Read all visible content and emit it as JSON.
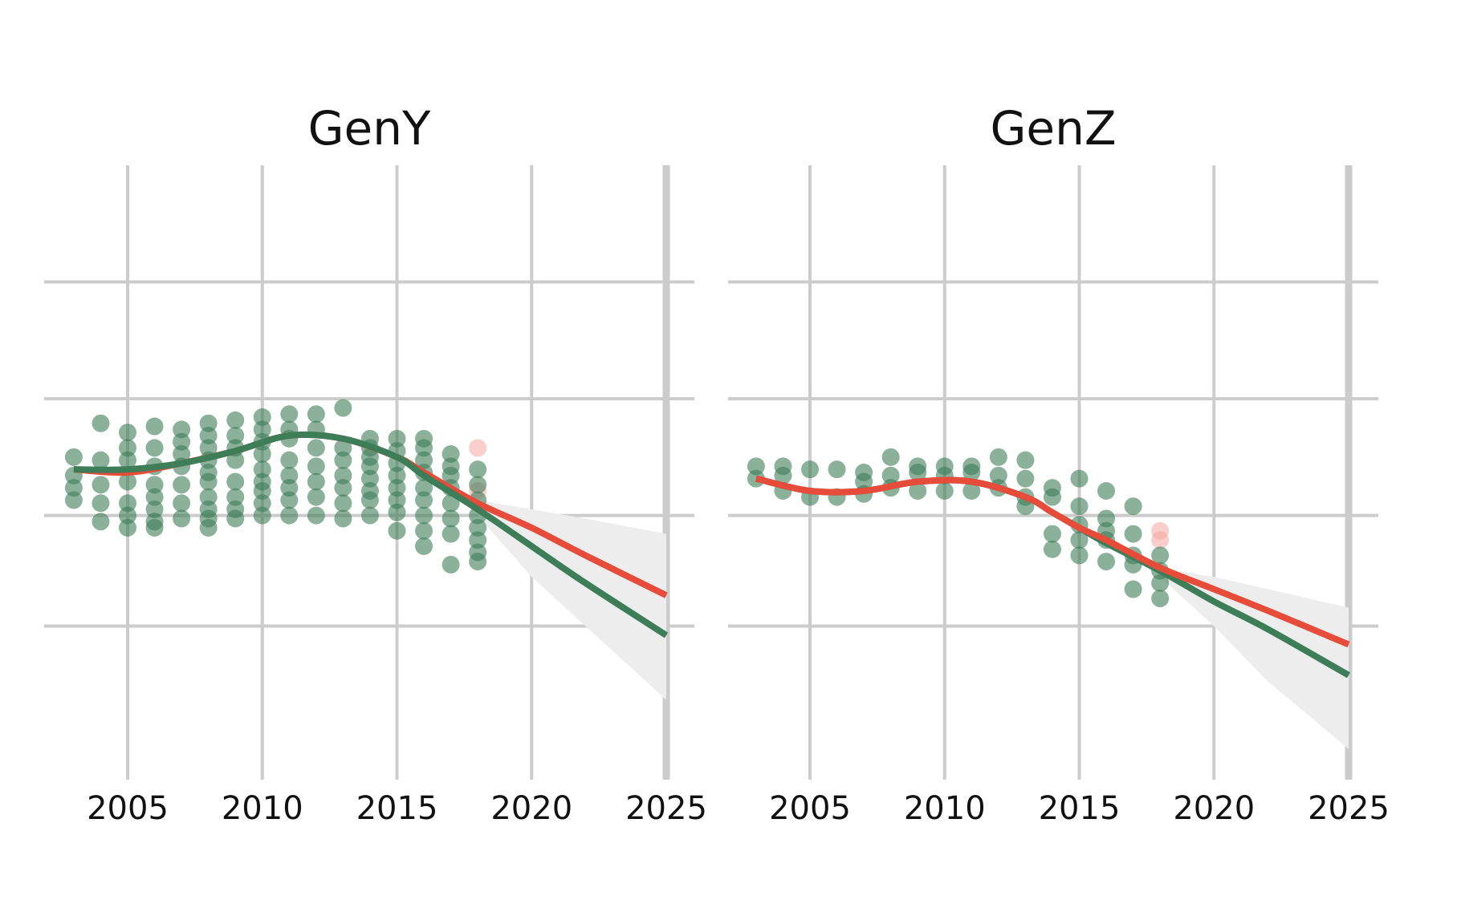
{
  "chart_data": {
    "type": "scatter",
    "x_ticks": [
      2005,
      2010,
      2015,
      2020,
      2025
    ],
    "x_tick_labels": [
      "2005",
      "2010",
      "2015",
      "2020",
      "2025"
    ],
    "xlim": [
      2002,
      2026
    ],
    "ylim": [
      0,
      100
    ],
    "y_gridlines": [
      25,
      43,
      62,
      81
    ],
    "grid": true,
    "legend": "none",
    "colors": {
      "points": "#3d7d58",
      "points_highlight": "#f4a6a0",
      "trend_red": "#e64c39",
      "trend_green": "#3d7d58",
      "ribbon": "#ededed",
      "grid": "#cccccc",
      "background": "#ffffff"
    },
    "panels": [
      {
        "title": "GenY",
        "points": [
          [
            2003,
            52.5
          ],
          [
            2003,
            49.5
          ],
          [
            2003,
            47.5
          ],
          [
            2003,
            45.5
          ],
          [
            2004,
            58
          ],
          [
            2004,
            52
          ],
          [
            2004,
            48
          ],
          [
            2004,
            45
          ],
          [
            2004,
            42
          ],
          [
            2005,
            56.5
          ],
          [
            2005,
            54
          ],
          [
            2005,
            52
          ],
          [
            2005,
            48.5
          ],
          [
            2005,
            45
          ],
          [
            2005,
            43
          ],
          [
            2005,
            41
          ],
          [
            2006,
            57.5
          ],
          [
            2006,
            54
          ],
          [
            2006,
            51
          ],
          [
            2006,
            48
          ],
          [
            2006,
            46
          ],
          [
            2006,
            44
          ],
          [
            2006,
            42
          ],
          [
            2006,
            41
          ],
          [
            2007,
            57
          ],
          [
            2007,
            55
          ],
          [
            2007,
            53
          ],
          [
            2007,
            51
          ],
          [
            2007,
            48
          ],
          [
            2007,
            45
          ],
          [
            2007,
            42.5
          ],
          [
            2008,
            58
          ],
          [
            2008,
            56
          ],
          [
            2008,
            54
          ],
          [
            2008,
            52
          ],
          [
            2008,
            50
          ],
          [
            2008,
            48.5
          ],
          [
            2008,
            46
          ],
          [
            2008,
            44
          ],
          [
            2008,
            42.5
          ],
          [
            2008,
            41
          ],
          [
            2009,
            58.5
          ],
          [
            2009,
            56
          ],
          [
            2009,
            54
          ],
          [
            2009,
            52
          ],
          [
            2009,
            48.5
          ],
          [
            2009,
            46
          ],
          [
            2009,
            44
          ],
          [
            2009,
            42.5
          ],
          [
            2010,
            59
          ],
          [
            2010,
            57
          ],
          [
            2010,
            55
          ],
          [
            2010,
            53
          ],
          [
            2010,
            50.5
          ],
          [
            2010,
            48.5
          ],
          [
            2010,
            47
          ],
          [
            2010,
            45
          ],
          [
            2010,
            43
          ],
          [
            2011,
            59.5
          ],
          [
            2011,
            57
          ],
          [
            2011,
            55.5
          ],
          [
            2011,
            52
          ],
          [
            2011,
            49.5
          ],
          [
            2011,
            47.5
          ],
          [
            2011,
            45.5
          ],
          [
            2011,
            43
          ],
          [
            2012,
            59.5
          ],
          [
            2012,
            57
          ],
          [
            2012,
            54
          ],
          [
            2012,
            51
          ],
          [
            2012,
            48.5
          ],
          [
            2012,
            46
          ],
          [
            2012,
            43
          ],
          [
            2013,
            60.5
          ],
          [
            2013,
            54
          ],
          [
            2013,
            52
          ],
          [
            2013,
            49.5
          ],
          [
            2013,
            47.5
          ],
          [
            2013,
            45
          ],
          [
            2013,
            42.5
          ],
          [
            2014,
            55.5
          ],
          [
            2014,
            54
          ],
          [
            2014,
            52.5
          ],
          [
            2014,
            51
          ],
          [
            2014,
            49
          ],
          [
            2014,
            47
          ],
          [
            2014,
            45.5
          ],
          [
            2014,
            43
          ],
          [
            2015,
            55.5
          ],
          [
            2015,
            53.5
          ],
          [
            2015,
            51.5
          ],
          [
            2015,
            49.5
          ],
          [
            2015,
            47.5
          ],
          [
            2015,
            45.5
          ],
          [
            2015,
            43.5
          ],
          [
            2015,
            40.5
          ],
          [
            2016,
            55.5
          ],
          [
            2016,
            54
          ],
          [
            2016,
            52
          ],
          [
            2016,
            50
          ],
          [
            2016,
            47.5
          ],
          [
            2016,
            45.5
          ],
          [
            2016,
            43
          ],
          [
            2016,
            40.5
          ],
          [
            2016,
            38
          ],
          [
            2017,
            53
          ],
          [
            2017,
            51
          ],
          [
            2017,
            49.5
          ],
          [
            2017,
            47.5
          ],
          [
            2017,
            45
          ],
          [
            2017,
            42.5
          ],
          [
            2017,
            40
          ],
          [
            2017,
            35
          ],
          [
            2018,
            50.5
          ],
          [
            2018,
            48
          ],
          [
            2018,
            45.5
          ],
          [
            2018,
            43
          ],
          [
            2018,
            41
          ],
          [
            2018,
            39
          ],
          [
            2018,
            37
          ],
          [
            2018,
            35.5
          ]
        ],
        "highlight_points": [
          [
            2018,
            54
          ],
          [
            2018,
            47
          ]
        ],
        "trend_red": [
          [
            2003,
            50.5
          ],
          [
            2005,
            50
          ],
          [
            2007,
            51.5
          ],
          [
            2009,
            53.5
          ],
          [
            2011,
            56
          ],
          [
            2013,
            55.5
          ],
          [
            2015,
            52.5
          ],
          [
            2016,
            50
          ],
          [
            2018,
            45
          ],
          [
            2020,
            41
          ],
          [
            2022,
            36.5
          ],
          [
            2025,
            30
          ]
        ],
        "trend_green": [
          [
            2003,
            50.5
          ],
          [
            2005,
            50.5
          ],
          [
            2007,
            51.5
          ],
          [
            2009,
            53.5
          ],
          [
            2011,
            56
          ],
          [
            2013,
            55.5
          ],
          [
            2015,
            52.5
          ],
          [
            2016,
            49.5
          ],
          [
            2018,
            44
          ],
          [
            2020,
            38
          ],
          [
            2022,
            32
          ],
          [
            2025,
            23.5
          ]
        ],
        "ribbon_upper": [
          [
            2018,
            45.5
          ],
          [
            2020,
            44
          ],
          [
            2022,
            42.5
          ],
          [
            2025,
            40
          ]
        ],
        "ribbon_lower": [
          [
            2025,
            13
          ],
          [
            2022,
            25
          ],
          [
            2020,
            33
          ],
          [
            2018,
            43
          ]
        ]
      },
      {
        "title": "GenZ",
        "points": [
          [
            2003,
            51
          ],
          [
            2003,
            49
          ],
          [
            2004,
            51
          ],
          [
            2004,
            49.5
          ],
          [
            2004,
            47
          ],
          [
            2005,
            50.5
          ],
          [
            2005,
            46
          ],
          [
            2006,
            50.5
          ],
          [
            2006,
            46
          ],
          [
            2007,
            50
          ],
          [
            2007,
            48.5
          ],
          [
            2007,
            46.5
          ],
          [
            2008,
            52.5
          ],
          [
            2008,
            49.5
          ],
          [
            2008,
            47.5
          ],
          [
            2009,
            51
          ],
          [
            2009,
            50
          ],
          [
            2009,
            47
          ],
          [
            2010,
            51
          ],
          [
            2010,
            49.5
          ],
          [
            2010,
            47
          ],
          [
            2011,
            51
          ],
          [
            2011,
            50
          ],
          [
            2011,
            47
          ],
          [
            2012,
            52.5
          ],
          [
            2012,
            49.5
          ],
          [
            2012,
            47.5
          ],
          [
            2013,
            52
          ],
          [
            2013,
            49
          ],
          [
            2013,
            46
          ],
          [
            2013,
            44.5
          ],
          [
            2014,
            47.5
          ],
          [
            2014,
            46
          ],
          [
            2014,
            40
          ],
          [
            2014,
            37.5
          ],
          [
            2015,
            49
          ],
          [
            2015,
            44.5
          ],
          [
            2015,
            41.5
          ],
          [
            2015,
            39
          ],
          [
            2015,
            36.5
          ],
          [
            2016,
            47
          ],
          [
            2016,
            42.5
          ],
          [
            2016,
            40.5
          ],
          [
            2016,
            39
          ],
          [
            2016,
            35.5
          ],
          [
            2017,
            44.5
          ],
          [
            2017,
            40
          ],
          [
            2017,
            36.5
          ],
          [
            2017,
            35
          ],
          [
            2017,
            31
          ],
          [
            2018,
            36.5
          ],
          [
            2018,
            34
          ],
          [
            2018,
            32
          ],
          [
            2018,
            29.5
          ]
        ],
        "highlight_points": [
          [
            2018,
            40.5
          ],
          [
            2018,
            39
          ]
        ],
        "trend_red": [
          [
            2003,
            49
          ],
          [
            2005,
            47
          ],
          [
            2007,
            47
          ],
          [
            2009,
            48.5
          ],
          [
            2011,
            48.5
          ],
          [
            2013,
            46
          ],
          [
            2014,
            43.5
          ],
          [
            2015,
            41
          ],
          [
            2016,
            39
          ],
          [
            2018,
            34.5
          ],
          [
            2020,
            31
          ],
          [
            2022,
            27.5
          ],
          [
            2025,
            22
          ]
        ],
        "trend_green": [
          [
            2003,
            49
          ],
          [
            2005,
            47
          ],
          [
            2007,
            47
          ],
          [
            2009,
            48.5
          ],
          [
            2011,
            48.5
          ],
          [
            2013,
            46
          ],
          [
            2014,
            43.5
          ],
          [
            2015,
            41
          ],
          [
            2016,
            38.5
          ],
          [
            2018,
            34
          ],
          [
            2020,
            29
          ],
          [
            2022,
            24.5
          ],
          [
            2025,
            17
          ]
        ],
        "ribbon_upper": [
          [
            2018,
            34.5
          ],
          [
            2020,
            33
          ],
          [
            2022,
            31
          ],
          [
            2025,
            28
          ]
        ],
        "ribbon_lower": [
          [
            2025,
            5
          ],
          [
            2022,
            16
          ],
          [
            2020,
            25
          ],
          [
            2018,
            33
          ]
        ]
      }
    ]
  }
}
